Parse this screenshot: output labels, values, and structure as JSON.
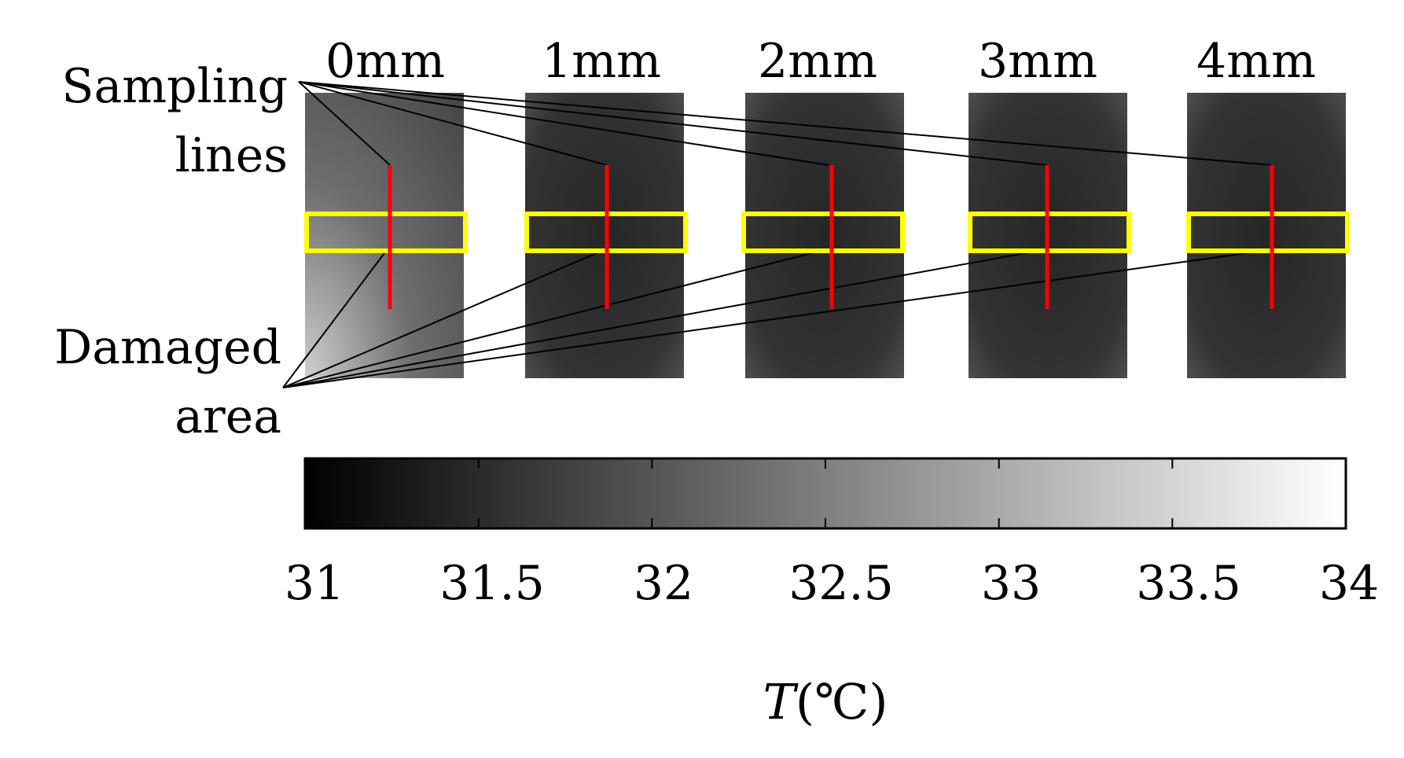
{
  "panels": [
    {
      "label": "0mm"
    },
    {
      "label": "1mm"
    },
    {
      "label": "2mm"
    },
    {
      "label": "3mm"
    },
    {
      "label": "4mm"
    }
  ],
  "annotations": {
    "sampling_line1": "Sampling",
    "sampling_line2": "lines",
    "damaged_line1": "Damaged",
    "damaged_line2": "area"
  },
  "colorbar": {
    "ticks": [
      "31",
      "31.5",
      "32",
      "32.5",
      "33",
      "33.5",
      "34"
    ],
    "label_symbol": "T",
    "label_unit": "(℃)",
    "range": [
      31,
      34
    ],
    "colormap": "gray"
  },
  "colors": {
    "sampling_line": "#ff0000",
    "damaged_area_box": "#ffff00",
    "leader_line": "#000000"
  }
}
